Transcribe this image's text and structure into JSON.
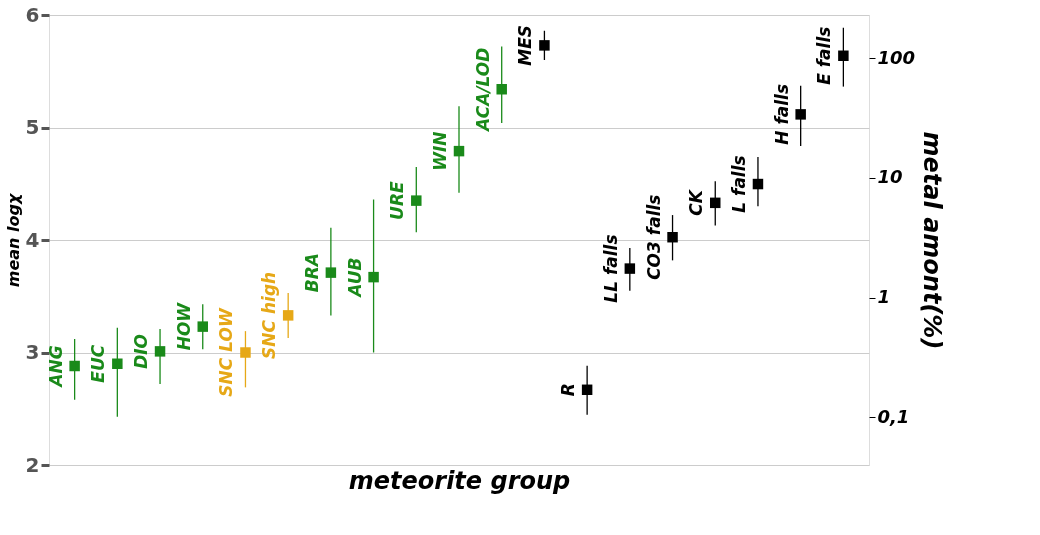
{
  "chart_data": {
    "type": "scatter",
    "xlabel": "meteorite group",
    "ylabel": "mean logχ",
    "y2label": "metal amont(%)",
    "categories": [
      "ANG",
      "EUC",
      "DIO",
      "HOW",
      "SNC LOW",
      "SNC high",
      "BRA",
      "AUB",
      "URE",
      "WIN",
      "ACA/LOD",
      "MES",
      "R",
      "LL falls",
      "CO3 falls",
      "CK",
      "L falls",
      "H falls",
      "E falls"
    ],
    "series": [
      {
        "color": "#1a8a1a",
        "values": [
          2.88,
          2.9,
          3.01,
          3.23,
          null,
          null,
          3.71,
          3.67,
          4.35,
          4.79,
          5.34,
          null,
          null,
          null,
          null,
          null,
          null,
          null,
          null
        ],
        "errors": [
          [
            2.58,
            3.12
          ],
          [
            2.43,
            3.22
          ],
          [
            2.72,
            3.21
          ],
          [
            3.03,
            3.43
          ],
          null,
          null,
          [
            3.33,
            4.11
          ],
          [
            3.0,
            4.36
          ],
          [
            4.07,
            4.65
          ],
          [
            4.42,
            5.19
          ],
          [
            5.04,
            5.72
          ],
          null,
          null,
          null,
          null,
          null,
          null,
          null,
          null
        ]
      },
      {
        "color": "#e6a817",
        "values": [
          null,
          null,
          null,
          null,
          3.0,
          3.33,
          null,
          null,
          null,
          null,
          null,
          null,
          null,
          null,
          null,
          null,
          null,
          null,
          null
        ],
        "errors": [
          null,
          null,
          null,
          null,
          [
            2.69,
            3.19
          ],
          [
            3.13,
            3.53
          ],
          null,
          null,
          null,
          null,
          null,
          null,
          null,
          null,
          null,
          null,
          null,
          null,
          null
        ]
      },
      {
        "color": "#000000",
        "values": [
          null,
          null,
          null,
          null,
          null,
          null,
          null,
          null,
          null,
          null,
          null,
          5.73,
          null,
          null,
          null,
          null,
          null,
          null,
          null
        ],
        "errors": [
          null,
          null,
          null,
          null,
          null,
          null,
          null,
          null,
          null,
          null,
          null,
          [
            5.6,
            5.86
          ],
          null,
          null,
          null,
          null,
          null,
          null,
          null
        ]
      },
      {
        "color": "#000000",
        "axis": "y2",
        "values": [
          null,
          null,
          null,
          null,
          null,
          null,
          null,
          null,
          null,
          null,
          null,
          null,
          0.17,
          1.75,
          3.2,
          6.2,
          8.9,
          34,
          105
        ],
        "errors": [
          null,
          null,
          null,
          null,
          null,
          null,
          null,
          null,
          null,
          null,
          null,
          null,
          [
            0.105,
            0.27
          ],
          [
            1.14,
            2.6
          ],
          [
            2.05,
            4.9
          ],
          [
            4.0,
            9.4
          ],
          [
            5.8,
            15
          ],
          [
            18.5,
            59
          ],
          [
            58,
            180
          ]
        ]
      }
    ],
    "ylim": [
      2,
      6
    ],
    "yticks": [
      2,
      3,
      4,
      5,
      6
    ],
    "y2lim": [
      0.04,
      230
    ],
    "y2ticks": [
      {
        "value": 0.1,
        "label": "0,1"
      },
      1,
      10,
      100
    ],
    "log": "y2",
    "grid": "y",
    "marker": "square"
  }
}
